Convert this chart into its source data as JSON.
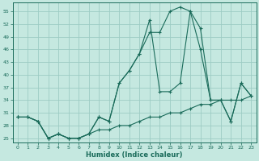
{
  "xlabel": "Humidex (Indice chaleur)",
  "background_color": "#c5e8e0",
  "grid_color": "#9dccc4",
  "line_color": "#1a6b5a",
  "x_values": [
    0,
    1,
    2,
    3,
    4,
    5,
    6,
    7,
    8,
    9,
    10,
    11,
    12,
    13,
    14,
    15,
    16,
    17,
    18,
    19,
    20,
    21,
    22,
    23
  ],
  "s_straight": [
    30,
    30,
    29,
    25,
    26,
    25,
    25,
    26,
    27,
    27,
    28,
    28,
    29,
    30,
    30,
    31,
    31,
    32,
    33,
    33,
    34,
    34,
    34,
    35
  ],
  "s_peak13": [
    30,
    30,
    29,
    25,
    26,
    25,
    25,
    26,
    30,
    29,
    38,
    41,
    45,
    53,
    36,
    36,
    38,
    55,
    46,
    34,
    34,
    29,
    38,
    35
  ],
  "s_peak16": [
    30,
    30,
    29,
    25,
    26,
    25,
    25,
    26,
    30,
    29,
    38,
    41,
    45,
    50,
    50,
    55,
    56,
    55,
    51,
    34,
    34,
    29,
    38,
    35
  ],
  "ylim_min": 24,
  "ylim_max": 57,
  "yticks": [
    25,
    28,
    31,
    34,
    37,
    40,
    43,
    46,
    49,
    52,
    55
  ],
  "xticks": [
    0,
    1,
    2,
    3,
    4,
    5,
    6,
    7,
    8,
    9,
    10,
    11,
    12,
    13,
    14,
    15,
    16,
    17,
    18,
    19,
    20,
    21,
    22,
    23
  ],
  "title_fontsize": 6,
  "label_fontsize": 6,
  "tick_fontsize": 4.5
}
